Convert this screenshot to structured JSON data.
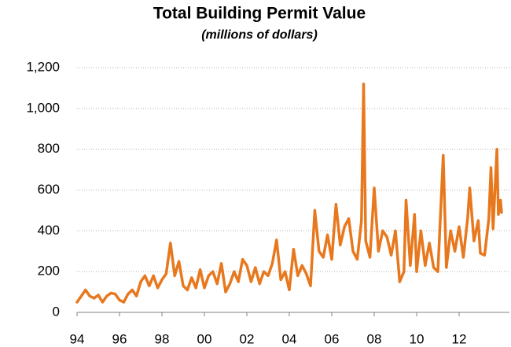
{
  "chart_data": {
    "type": "line",
    "title": "Total Building Permit Value",
    "subtitle": "(millions of dollars)",
    "x": [
      1994.0,
      1994.2,
      1994.4,
      1994.6,
      1994.8,
      1995.0,
      1995.2,
      1995.4,
      1995.6,
      1995.8,
      1996.0,
      1996.2,
      1996.4,
      1996.6,
      1996.8,
      1997.0,
      1997.2,
      1997.4,
      1997.6,
      1997.8,
      1998.0,
      1998.2,
      1998.4,
      1998.6,
      1998.8,
      1999.0,
      1999.2,
      1999.4,
      1999.6,
      1999.8,
      2000.0,
      2000.2,
      2000.4,
      2000.6,
      2000.8,
      2001.0,
      2001.2,
      2001.4,
      2001.6,
      2001.8,
      2002.0,
      2002.2,
      2002.4,
      2002.6,
      2002.8,
      2003.0,
      2003.2,
      2003.4,
      2003.6,
      2003.8,
      2004.0,
      2004.2,
      2004.4,
      2004.6,
      2004.8,
      2005.0,
      2005.2,
      2005.4,
      2005.6,
      2005.8,
      2006.0,
      2006.2,
      2006.4,
      2006.6,
      2006.8,
      2007.0,
      2007.2,
      2007.4,
      2007.5,
      2007.6,
      2007.8,
      2008.0,
      2008.2,
      2008.4,
      2008.6,
      2008.8,
      2009.0,
      2009.2,
      2009.4,
      2009.5,
      2009.7,
      2009.9,
      2010.0,
      2010.2,
      2010.4,
      2010.6,
      2010.8,
      2011.0,
      2011.25,
      2011.4,
      2011.6,
      2011.8,
      2012.0,
      2012.2,
      2012.4,
      2012.5,
      2012.7,
      2012.9,
      2013.0,
      2013.2,
      2013.4,
      2013.5,
      2013.6,
      2013.78,
      2013.85,
      2013.95,
      2014.0
    ],
    "series": [
      {
        "name": "Total Building Permit Value",
        "color": "#e8781e",
        "values": [
          50,
          80,
          110,
          80,
          70,
          85,
          50,
          80,
          95,
          90,
          60,
          50,
          90,
          110,
          80,
          150,
          180,
          130,
          180,
          120,
          160,
          190,
          340,
          180,
          250,
          130,
          110,
          170,
          120,
          210,
          120,
          180,
          200,
          140,
          240,
          100,
          140,
          200,
          150,
          260,
          230,
          150,
          220,
          140,
          200,
          180,
          240,
          355,
          160,
          200,
          110,
          310,
          180,
          230,
          190,
          130,
          500,
          300,
          270,
          380,
          260,
          530,
          330,
          420,
          460,
          300,
          260,
          450,
          1120,
          350,
          270,
          610,
          300,
          400,
          370,
          280,
          400,
          150,
          200,
          550,
          230,
          480,
          200,
          400,
          230,
          340,
          220,
          200,
          770,
          220,
          400,
          300,
          420,
          270,
          460,
          610,
          350,
          450,
          290,
          280,
          460,
          710,
          410,
          800,
          480,
          550,
          490
        ]
      }
    ],
    "xlim": [
      1994,
      2014
    ],
    "xticks": [
      {
        "value": 1994,
        "label": "94"
      },
      {
        "value": 1996,
        "label": "96"
      },
      {
        "value": 1998,
        "label": "98"
      },
      {
        "value": 2000,
        "label": "00"
      },
      {
        "value": 2002,
        "label": "02"
      },
      {
        "value": 2004,
        "label": "04"
      },
      {
        "value": 2006,
        "label": "06"
      },
      {
        "value": 2008,
        "label": "08"
      },
      {
        "value": 2010,
        "label": "10"
      },
      {
        "value": 2012,
        "label": "12"
      }
    ],
    "ylim": [
      0,
      1200
    ],
    "yticks": [
      0,
      200,
      400,
      600,
      800,
      {
        "value": 1000,
        "label": "1,000"
      },
      {
        "value": 1200,
        "label": "1,200"
      }
    ],
    "grid": true
  }
}
